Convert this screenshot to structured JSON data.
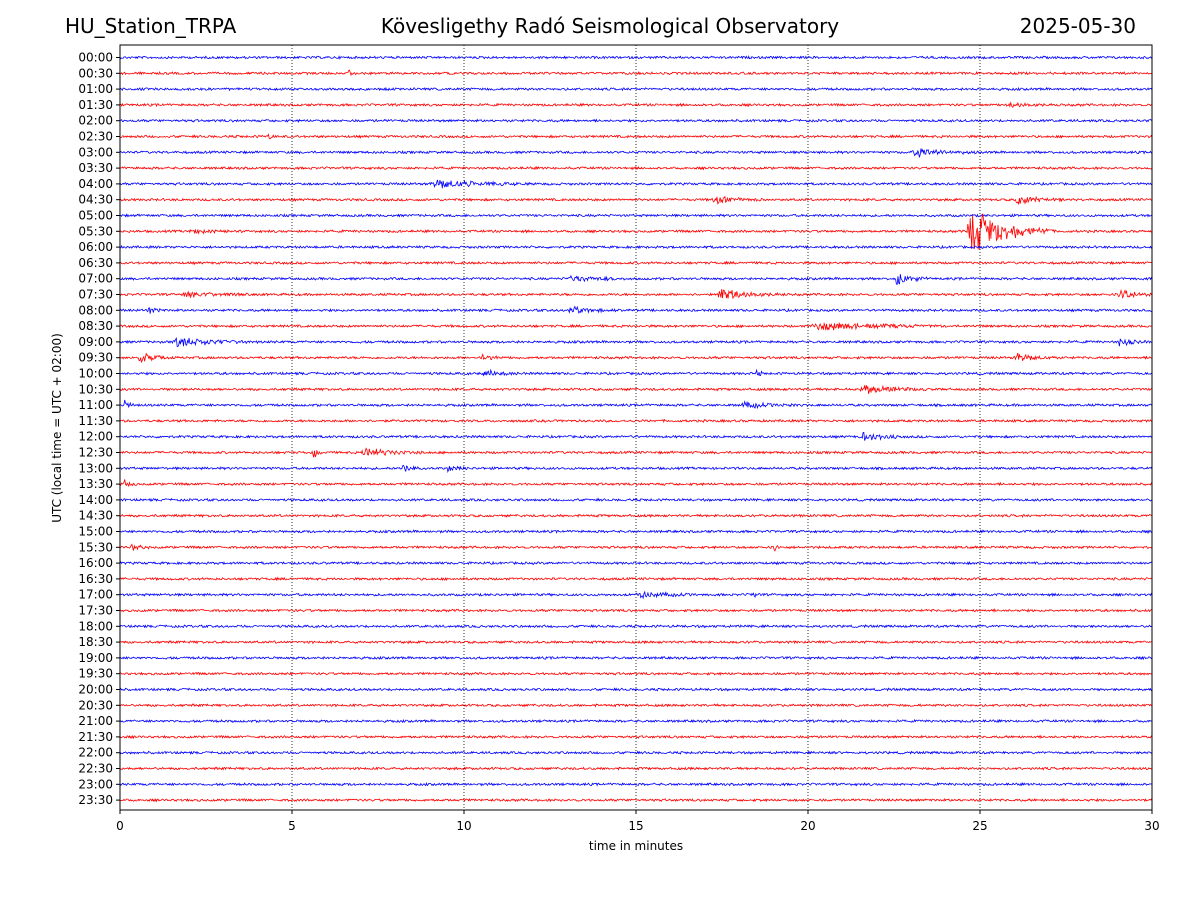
{
  "header": {
    "station": "HU_Station_TRPA",
    "title": "Kövesligethy Radó Seismological Observatory",
    "date": "2025-05-30"
  },
  "chart_data": {
    "type": "line",
    "title": "Kövesligethy Radó Seismological Observatory",
    "xlabel": "time in minutes",
    "ylabel": "UTC (local time = UTC + 02:00)",
    "xlim": [
      0,
      30
    ],
    "xticks": [
      0,
      5,
      10,
      15,
      20,
      25,
      30
    ],
    "grid": "vertical dotted at 5-minute ticks",
    "colors": [
      "#0000ff",
      "#ff0000"
    ],
    "row_labels": [
      "00:00",
      "00:30",
      "01:00",
      "01:30",
      "02:00",
      "02:30",
      "03:00",
      "03:30",
      "04:00",
      "04:30",
      "05:00",
      "05:30",
      "06:00",
      "06:30",
      "07:00",
      "07:30",
      "08:00",
      "08:30",
      "09:00",
      "09:30",
      "10:00",
      "10:30",
      "11:00",
      "11:30",
      "12:00",
      "12:30",
      "13:00",
      "13:30",
      "14:00",
      "14:30",
      "15:00",
      "15:30",
      "16:00",
      "16:30",
      "17:00",
      "17:30",
      "18:00",
      "18:30",
      "19:00",
      "19:30",
      "20:00",
      "20:30",
      "21:00",
      "21:30",
      "22:00",
      "22:30",
      "23:00",
      "23:30"
    ],
    "events": [
      {
        "row": 1,
        "t": 6.6,
        "dur": 0.3,
        "amp": 4
      },
      {
        "row": 3,
        "t": 25.8,
        "dur": 1.5,
        "amp": 2.5
      },
      {
        "row": 5,
        "t": 4.3,
        "dur": 0.3,
        "amp": 2.5
      },
      {
        "row": 6,
        "t": 23.0,
        "dur": 2.0,
        "amp": 5
      },
      {
        "row": 8,
        "t": 9.0,
        "dur": 3.0,
        "amp": 5
      },
      {
        "row": 9,
        "t": 17.2,
        "dur": 1.5,
        "amp": 4
      },
      {
        "row": 9,
        "t": 26.0,
        "dur": 1.5,
        "amp": 5
      },
      {
        "row": 11,
        "t": 24.6,
        "dur": 2.5,
        "amp": 28
      },
      {
        "row": 11,
        "t": 2.0,
        "dur": 1.5,
        "amp": 2
      },
      {
        "row": 14,
        "t": 13.0,
        "dur": 2.0,
        "amp": 3
      },
      {
        "row": 14,
        "t": 22.5,
        "dur": 1.0,
        "amp": 8
      },
      {
        "row": 15,
        "t": 17.3,
        "dur": 2.0,
        "amp": 7
      },
      {
        "row": 15,
        "t": 29.0,
        "dur": 1.0,
        "amp": 7
      },
      {
        "row": 15,
        "t": 1.8,
        "dur": 2.0,
        "amp": 3
      },
      {
        "row": 16,
        "t": 0.8,
        "dur": 0.4,
        "amp": 6
      },
      {
        "row": 16,
        "t": 13.0,
        "dur": 1.5,
        "amp": 4
      },
      {
        "row": 17,
        "t": 20.0,
        "dur": 4.0,
        "amp": 5
      },
      {
        "row": 18,
        "t": 1.5,
        "dur": 2.5,
        "amp": 6
      },
      {
        "row": 18,
        "t": 29.0,
        "dur": 0.8,
        "amp": 5
      },
      {
        "row": 19,
        "t": 0.5,
        "dur": 1.0,
        "amp": 6
      },
      {
        "row": 19,
        "t": 10.5,
        "dur": 0.6,
        "amp": 4
      },
      {
        "row": 19,
        "t": 26.0,
        "dur": 1.2,
        "amp": 5
      },
      {
        "row": 20,
        "t": 10.5,
        "dur": 1.2,
        "amp": 4
      },
      {
        "row": 20,
        "t": 18.5,
        "dur": 0.2,
        "amp": 8
      },
      {
        "row": 21,
        "t": 21.5,
        "dur": 2.0,
        "amp": 5
      },
      {
        "row": 22,
        "t": 0.1,
        "dur": 0.3,
        "amp": 8
      },
      {
        "row": 22,
        "t": 18.0,
        "dur": 2.0,
        "amp": 3
      },
      {
        "row": 24,
        "t": 21.5,
        "dur": 1.2,
        "amp": 7
      },
      {
        "row": 25,
        "t": 5.6,
        "dur": 0.4,
        "amp": 7
      },
      {
        "row": 25,
        "t": 7.0,
        "dur": 1.8,
        "amp": 5
      },
      {
        "row": 26,
        "t": 8.2,
        "dur": 0.5,
        "amp": 5
      },
      {
        "row": 26,
        "t": 9.5,
        "dur": 0.6,
        "amp": 4
      },
      {
        "row": 27,
        "t": 0.1,
        "dur": 0.4,
        "amp": 4
      },
      {
        "row": 31,
        "t": 0.3,
        "dur": 0.6,
        "amp": 4
      },
      {
        "row": 31,
        "t": 19.0,
        "dur": 0.2,
        "amp": 8
      },
      {
        "row": 34,
        "t": 15.0,
        "dur": 1.8,
        "amp": 4
      },
      {
        "row": 34,
        "t": 18.4,
        "dur": 0.2,
        "amp": 6
      }
    ]
  }
}
